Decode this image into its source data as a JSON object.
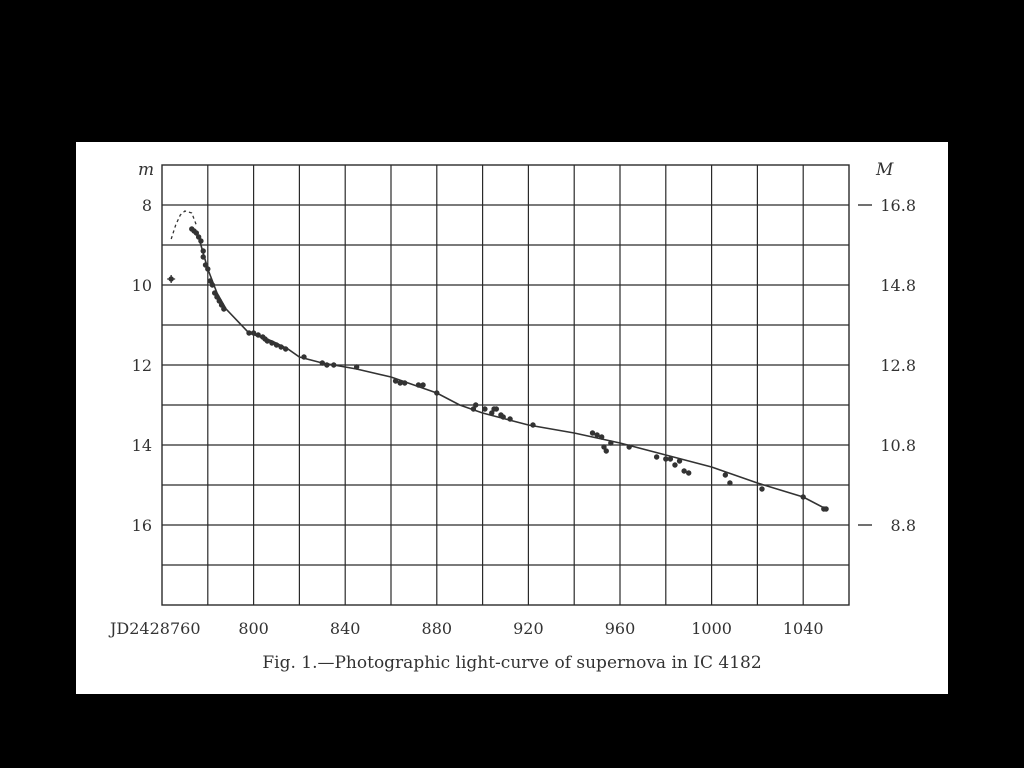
{
  "chart_data": {
    "type": "scatter",
    "title": "",
    "caption": "Fig. 1.—Photographic light-curve of supernova in IC 4182",
    "xlabel": "",
    "x_start_label": "JD2428760",
    "x_ticks": [
      800,
      840,
      880,
      920,
      960,
      1000,
      1040
    ],
    "xlim": [
      760,
      1060
    ],
    "left_axis": {
      "label": "m",
      "ticks": [
        "8",
        "10",
        "12",
        "14",
        "16"
      ],
      "range": [
        7.0,
        18.0
      ],
      "inverted": true
    },
    "right_axis": {
      "label": "M",
      "ticks": [
        "16.8",
        "14.8",
        "12.8",
        "10.8",
        "8.8"
      ],
      "range": [
        17.8,
        6.8
      ]
    },
    "grid": true,
    "series": [
      {
        "kind": "observations",
        "points": [
          [
            764,
            9.85
          ],
          [
            773,
            8.6
          ],
          [
            774,
            8.65
          ],
          [
            775,
            8.7
          ],
          [
            776,
            8.8
          ],
          [
            777,
            8.9
          ],
          [
            778,
            9.15
          ],
          [
            778,
            9.3
          ],
          [
            779,
            9.5
          ],
          [
            780,
            9.6
          ],
          [
            781,
            9.9
          ],
          [
            782,
            10.0
          ],
          [
            783,
            10.2
          ],
          [
            784,
            10.3
          ],
          [
            785,
            10.4
          ],
          [
            786,
            10.5
          ],
          [
            787,
            10.6
          ],
          [
            798,
            11.2
          ],
          [
            800,
            11.2
          ],
          [
            802,
            11.25
          ],
          [
            804,
            11.3
          ],
          [
            805,
            11.35
          ],
          [
            806,
            11.4
          ],
          [
            808,
            11.45
          ],
          [
            810,
            11.5
          ],
          [
            812,
            11.55
          ],
          [
            814,
            11.6
          ],
          [
            822,
            11.8
          ],
          [
            830,
            11.95
          ],
          [
            832,
            12.0
          ],
          [
            835,
            12.0
          ],
          [
            845,
            12.05
          ],
          [
            862,
            12.4
          ],
          [
            864,
            12.45
          ],
          [
            866,
            12.45
          ],
          [
            872,
            12.5
          ],
          [
            874,
            12.5
          ],
          [
            880,
            12.7
          ],
          [
            896,
            13.1
          ],
          [
            897,
            13.0
          ],
          [
            901,
            13.1
          ],
          [
            904,
            13.2
          ],
          [
            905,
            13.1
          ],
          [
            906,
            13.1
          ],
          [
            908,
            13.25
          ],
          [
            909,
            13.3
          ],
          [
            912,
            13.35
          ],
          [
            922,
            13.5
          ],
          [
            948,
            13.7
          ],
          [
            950,
            13.75
          ],
          [
            952,
            13.8
          ],
          [
            953,
            14.05
          ],
          [
            954,
            14.15
          ],
          [
            956,
            13.95
          ],
          [
            964,
            14.05
          ],
          [
            976,
            14.3
          ],
          [
            980,
            14.35
          ],
          [
            982,
            14.35
          ],
          [
            984,
            14.5
          ],
          [
            986,
            14.4
          ],
          [
            988,
            14.65
          ],
          [
            990,
            14.7
          ],
          [
            1006,
            14.75
          ],
          [
            1008,
            14.95
          ],
          [
            1022,
            15.1
          ],
          [
            1040,
            15.3
          ],
          [
            1049,
            15.6
          ],
          [
            1050,
            15.6
          ]
        ]
      },
      {
        "kind": "fitted-curve",
        "points": [
          [
            776,
            8.8
          ],
          [
            778,
            9.2
          ],
          [
            780,
            9.6
          ],
          [
            784,
            10.2
          ],
          [
            788,
            10.6
          ],
          [
            798,
            11.2
          ],
          [
            808,
            11.4
          ],
          [
            815,
            11.6
          ],
          [
            820,
            11.8
          ],
          [
            830,
            11.95
          ],
          [
            845,
            12.1
          ],
          [
            860,
            12.3
          ],
          [
            870,
            12.5
          ],
          [
            880,
            12.7
          ],
          [
            890,
            13.0
          ],
          [
            900,
            13.2
          ],
          [
            910,
            13.35
          ],
          [
            920,
            13.5
          ],
          [
            940,
            13.7
          ],
          [
            960,
            13.95
          ],
          [
            980,
            14.25
          ],
          [
            1000,
            14.55
          ],
          [
            1020,
            14.95
          ],
          [
            1040,
            15.3
          ],
          [
            1050,
            15.6
          ]
        ]
      },
      {
        "kind": "dashed-extrapolation",
        "points": [
          [
            764,
            8.85
          ],
          [
            766,
            8.5
          ],
          [
            768,
            8.25
          ],
          [
            770,
            8.15
          ],
          [
            773,
            8.2
          ],
          [
            775,
            8.5
          ]
        ]
      }
    ]
  }
}
